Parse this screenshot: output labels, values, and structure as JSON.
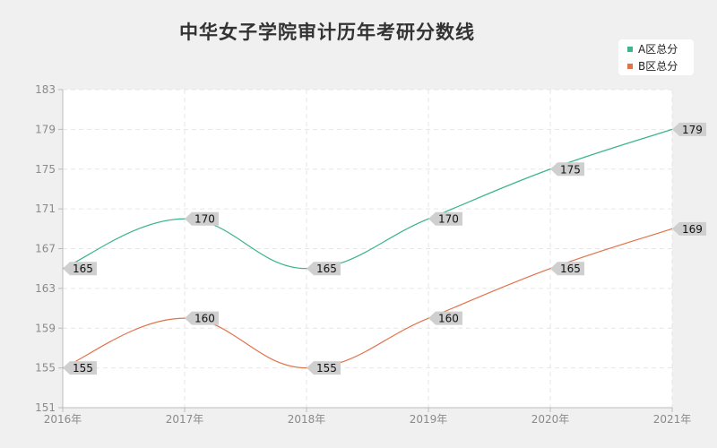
{
  "chart_data": {
    "type": "line",
    "title": "中华女子学院审计历年考研分数线",
    "categories": [
      "2016年",
      "2017年",
      "2018年",
      "2019年",
      "2020年",
      "2021年"
    ],
    "series": [
      {
        "name": "A区总分",
        "values": [
          165,
          170,
          165,
          170,
          175,
          179
        ],
        "color": "#3cb48c"
      },
      {
        "name": "B区总分",
        "values": [
          155,
          160,
          155,
          160,
          165,
          169
        ],
        "color": "#e0734a"
      }
    ],
    "yticks": [
      151,
      155,
      159,
      163,
      167,
      171,
      175,
      179,
      183
    ],
    "ylim": [
      151,
      183
    ],
    "grid": true,
    "legend_position": "top-right",
    "label_bg": "#cfcfcf"
  }
}
